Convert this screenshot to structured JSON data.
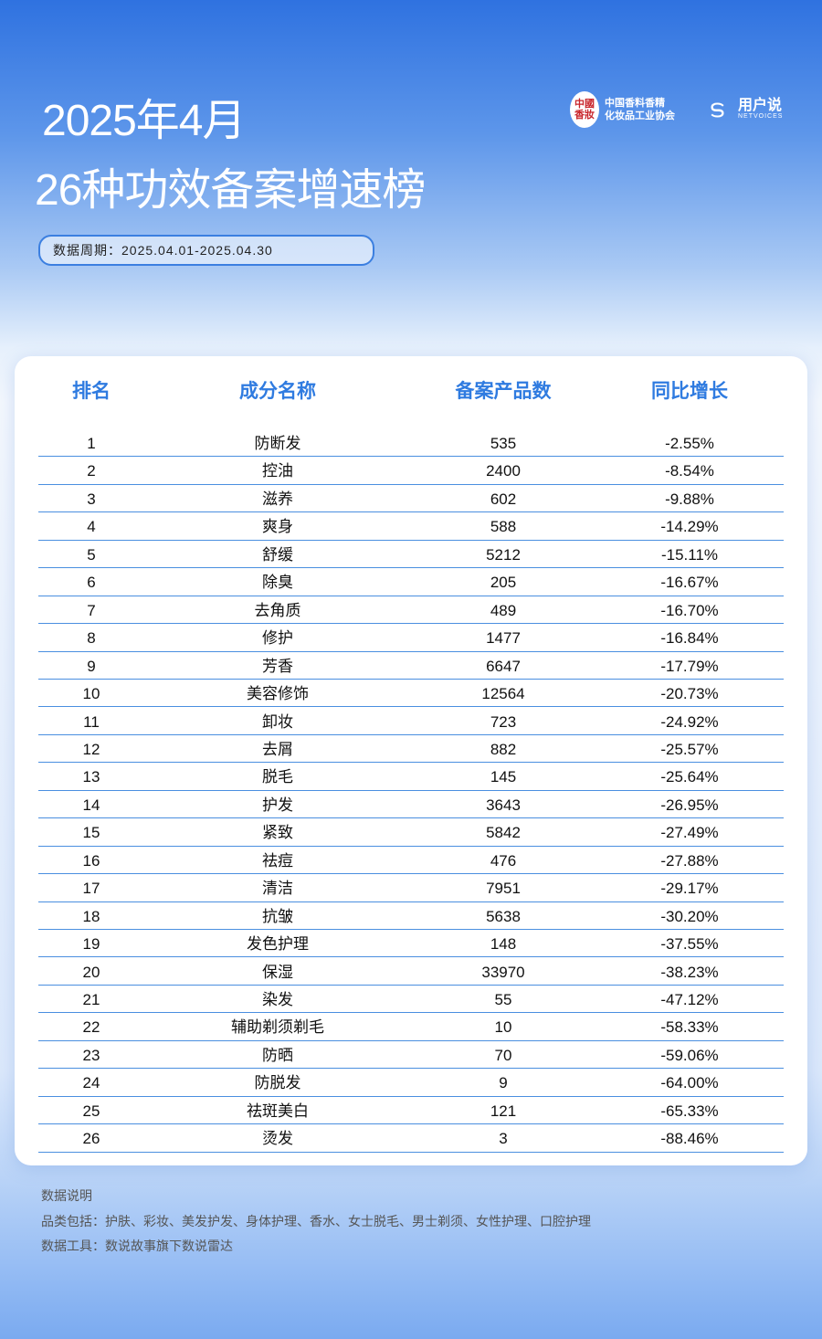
{
  "header": {
    "title_line1": "2025年4月",
    "title_line2": "26种功效备案增速榜",
    "period": "数据周期：2025.04.01-2025.04.30",
    "logo1": {
      "seal": "中國香妝",
      "line1": "中国香料香精",
      "line2": "化妆品工业协会"
    },
    "logo2": {
      "name": "用户说",
      "sub": "NETVOICES"
    }
  },
  "table": {
    "columns": [
      "排名",
      "成分名称",
      "备案产品数",
      "同比增长"
    ],
    "rows": [
      [
        "1",
        "防断发",
        "535",
        "-2.55%"
      ],
      [
        "2",
        "控油",
        "2400",
        "-8.54%"
      ],
      [
        "3",
        "滋养",
        "602",
        "-9.88%"
      ],
      [
        "4",
        "爽身",
        "588",
        "-14.29%"
      ],
      [
        "5",
        "舒缓",
        "5212",
        "-15.11%"
      ],
      [
        "6",
        "除臭",
        "205",
        "-16.67%"
      ],
      [
        "7",
        "去角质",
        "489",
        "-16.70%"
      ],
      [
        "8",
        "修护",
        "1477",
        "-16.84%"
      ],
      [
        "9",
        "芳香",
        "6647",
        "-17.79%"
      ],
      [
        "10",
        "美容修饰",
        "12564",
        "-20.73%"
      ],
      [
        "11",
        "卸妆",
        "723",
        "-24.92%"
      ],
      [
        "12",
        "去屑",
        "882",
        "-25.57%"
      ],
      [
        "13",
        "脱毛",
        "145",
        "-25.64%"
      ],
      [
        "14",
        "护发",
        "3643",
        "-26.95%"
      ],
      [
        "15",
        "紧致",
        "5842",
        "-27.49%"
      ],
      [
        "16",
        "祛痘",
        "476",
        "-27.88%"
      ],
      [
        "17",
        "清洁",
        "7951",
        "-29.17%"
      ],
      [
        "18",
        "抗皱",
        "5638",
        "-30.20%"
      ],
      [
        "19",
        "发色护理",
        "148",
        "-37.55%"
      ],
      [
        "20",
        "保湿",
        "33970",
        "-38.23%"
      ],
      [
        "21",
        "染发",
        "55",
        "-47.12%"
      ],
      [
        "22",
        "辅助剃须剃毛",
        "10",
        "-58.33%"
      ],
      [
        "23",
        "防晒",
        "70",
        "-59.06%"
      ],
      [
        "24",
        "防脱发",
        "9",
        "-64.00%"
      ],
      [
        "25",
        "祛斑美白",
        "121",
        "-65.33%"
      ],
      [
        "26",
        "烫发",
        "3",
        "-88.46%"
      ]
    ]
  },
  "notes": {
    "title": "数据说明",
    "categories": "品类包括：护肤、彩妆、美发护发、身体护理、香水、女士脱毛、男士剃须、女性护理、口腔护理",
    "tool": "数据工具：数说故事旗下数说雷达"
  },
  "colors": {
    "accent": "#2f7be0",
    "row_line": "#4a8fe0"
  }
}
